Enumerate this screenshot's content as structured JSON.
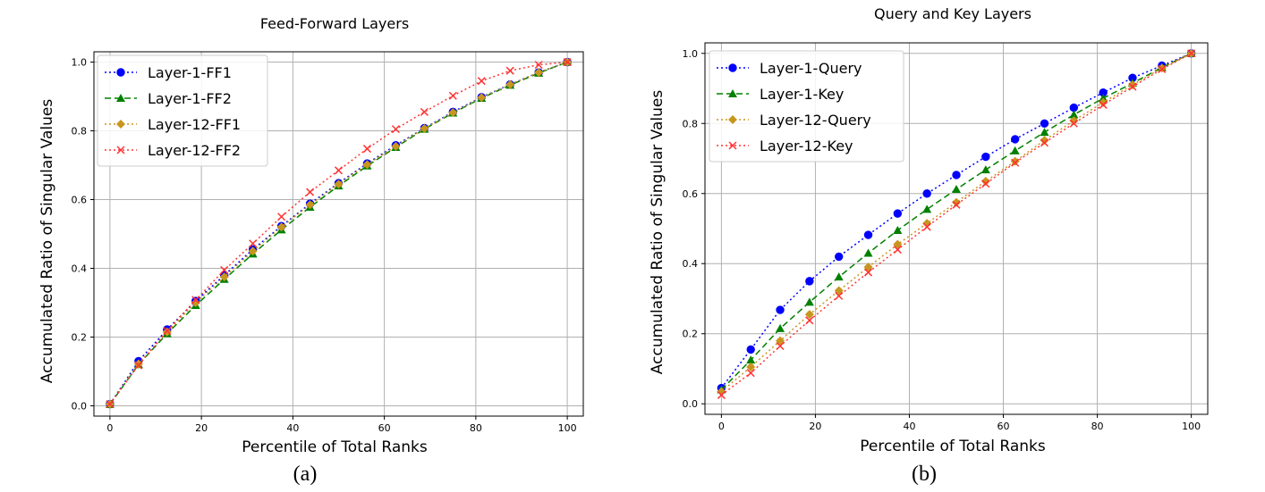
{
  "chart_data": [
    {
      "type": "line",
      "title": "Feed-Forward Layers",
      "xlabel": "Percentile of Total Ranks",
      "ylabel": "Accumulated Ratio of Singular Values",
      "caption": "(a)",
      "xlim": [
        -3.5,
        103.5
      ],
      "ylim": [
        -0.03,
        1.03
      ],
      "xticks": [
        "0",
        "20",
        "40",
        "60",
        "80",
        "100"
      ],
      "yticks": [
        "0.0",
        "0.2",
        "0.4",
        "0.6",
        "0.8",
        "1.0"
      ],
      "grid": true,
      "legend_position": "top-left",
      "x": [
        0,
        6.25,
        12.5,
        18.75,
        25,
        31.25,
        37.5,
        43.75,
        50,
        56.25,
        62.5,
        68.75,
        75,
        81.25,
        87.5,
        93.75,
        100
      ],
      "series": [
        {
          "name": "Layer-1-FF1",
          "color": "#0000ff",
          "dash": "dotted",
          "marker": "circle",
          "values": [
            0.005,
            0.13,
            0.222,
            0.305,
            0.38,
            0.455,
            0.523,
            0.588,
            0.648,
            0.705,
            0.758,
            0.808,
            0.855,
            0.898,
            0.935,
            0.97,
            1.0
          ]
        },
        {
          "name": "Layer-1-FF2",
          "color": "#008000",
          "dash": "dashed",
          "marker": "triangle",
          "values": [
            0.004,
            0.12,
            0.21,
            0.292,
            0.368,
            0.442,
            0.512,
            0.578,
            0.64,
            0.698,
            0.752,
            0.805,
            0.852,
            0.895,
            0.933,
            0.968,
            1.0
          ]
        },
        {
          "name": "Layer-12-FF1",
          "color": "#c8961e",
          "dash": "dotted",
          "marker": "diamond",
          "values": [
            0.005,
            0.122,
            0.215,
            0.3,
            0.375,
            0.45,
            0.52,
            0.585,
            0.645,
            0.702,
            0.755,
            0.807,
            0.853,
            0.897,
            0.935,
            0.97,
            1.0
          ]
        },
        {
          "name": "Layer-12-FF2",
          "color": "#ff3333",
          "dash": "dotted",
          "marker": "x",
          "values": [
            0.005,
            0.118,
            0.218,
            0.308,
            0.395,
            0.472,
            0.55,
            0.622,
            0.685,
            0.748,
            0.805,
            0.855,
            0.902,
            0.945,
            0.975,
            0.992,
            1.0
          ]
        }
      ]
    },
    {
      "type": "line",
      "title": "Query and Key Layers",
      "xlabel": "Percentile of Total Ranks",
      "ylabel": "Accumulated Ratio of Singular Values",
      "caption": "(b)",
      "xlim": [
        -3.5,
        103.5
      ],
      "ylim": [
        -0.03,
        1.03
      ],
      "xticks": [
        "0",
        "20",
        "40",
        "60",
        "80",
        "100"
      ],
      "yticks": [
        "0.0",
        "0.2",
        "0.4",
        "0.6",
        "0.8",
        "1.0"
      ],
      "grid": true,
      "legend_position": "top-left",
      "x": [
        0,
        6.25,
        12.5,
        18.75,
        25,
        31.25,
        37.5,
        43.75,
        50,
        56.25,
        62.5,
        68.75,
        75,
        81.25,
        87.5,
        93.75,
        100
      ],
      "series": [
        {
          "name": "Layer-1-Query",
          "color": "#0000ff",
          "dash": "dotted",
          "marker": "circle",
          "values": [
            0.045,
            0.155,
            0.268,
            0.35,
            0.42,
            0.482,
            0.543,
            0.6,
            0.653,
            0.705,
            0.755,
            0.8,
            0.845,
            0.888,
            0.93,
            0.965,
            1.0
          ]
        },
        {
          "name": "Layer-1-Key",
          "color": "#008000",
          "dash": "dashed",
          "marker": "triangle",
          "values": [
            0.04,
            0.125,
            0.215,
            0.29,
            0.362,
            0.43,
            0.495,
            0.555,
            0.612,
            0.668,
            0.722,
            0.775,
            0.825,
            0.872,
            0.915,
            0.96,
            1.0
          ]
        },
        {
          "name": "Layer-12-Query",
          "color": "#c8961e",
          "dash": "dotted",
          "marker": "diamond",
          "values": [
            0.035,
            0.105,
            0.18,
            0.255,
            0.323,
            0.39,
            0.455,
            0.515,
            0.575,
            0.635,
            0.692,
            0.752,
            0.808,
            0.86,
            0.91,
            0.958,
            1.0
          ]
        },
        {
          "name": "Layer-12-Key",
          "color": "#ff3333",
          "dash": "dotted",
          "marker": "x",
          "values": [
            0.025,
            0.088,
            0.165,
            0.238,
            0.308,
            0.375,
            0.44,
            0.505,
            0.568,
            0.628,
            0.688,
            0.745,
            0.8,
            0.853,
            0.905,
            0.955,
            1.0
          ]
        }
      ]
    }
  ]
}
